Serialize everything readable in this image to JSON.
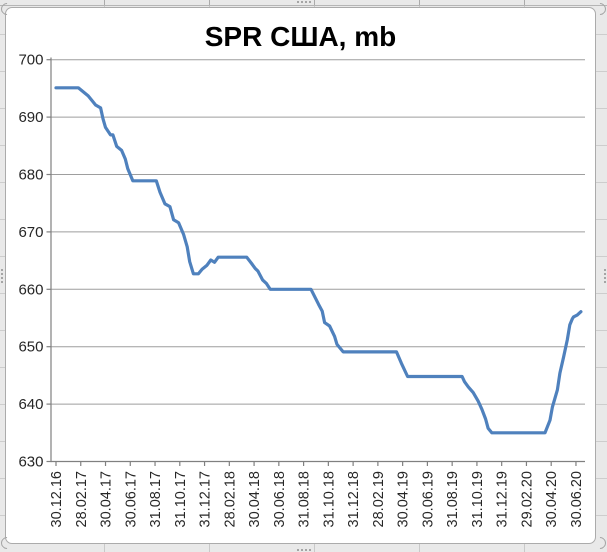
{
  "chart_data": {
    "type": "line",
    "title": "SPR США, mb",
    "legend": "none",
    "grid": "horizontal",
    "ylim": [
      630,
      700
    ],
    "y_ticks": [
      630,
      640,
      650,
      660,
      670,
      680,
      690,
      700
    ],
    "x_tick_labels": [
      "30.12.16",
      "28.02.17",
      "30.04.17",
      "30.06.17",
      "31.08.17",
      "31.10.17",
      "31.12.17",
      "28.02.18",
      "30.04.18",
      "30.06.18",
      "31.08.18",
      "31.10.18",
      "31.12.18",
      "28.02.19",
      "30.04.19",
      "30.06.19",
      "31.08.19",
      "31.10.19",
      "31.12.19",
      "29.02.20",
      "30.04.20",
      "30.06.20"
    ],
    "x_tick_month_step": 2,
    "x_unit": "months after 30.12.16",
    "colors": {
      "line": "#4F81BD",
      "grid": "#9E9E9E",
      "axis": "#808080",
      "labels": "#262626",
      "title": "#000000",
      "chart_background": "#FFFFFF",
      "sheet_background": "#E9E9E9"
    },
    "series": [
      {
        "name": "SPR США",
        "color": "#4F81BD",
        "line_width": 3.2,
        "points": [
          [
            0,
            695.1
          ],
          [
            1.8,
            695.1
          ],
          [
            2.6,
            693.7
          ],
          [
            3.2,
            692.1
          ],
          [
            3.6,
            691.6
          ],
          [
            3.8,
            689.7
          ],
          [
            4.0,
            688.2
          ],
          [
            4.4,
            686.9
          ],
          [
            4.6,
            686.9
          ],
          [
            4.9,
            684.9
          ],
          [
            5.3,
            684.2
          ],
          [
            5.6,
            682.7
          ],
          [
            5.8,
            681.0
          ],
          [
            6.2,
            678.9
          ],
          [
            8.1,
            678.9
          ],
          [
            8.4,
            676.9
          ],
          [
            8.8,
            674.9
          ],
          [
            9.2,
            674.4
          ],
          [
            9.5,
            672.1
          ],
          [
            9.9,
            671.6
          ],
          [
            10.3,
            669.6
          ],
          [
            10.6,
            667.4
          ],
          [
            10.8,
            664.8
          ],
          [
            11.1,
            662.7
          ],
          [
            11.5,
            662.7
          ],
          [
            11.8,
            663.5
          ],
          [
            12.2,
            664.2
          ],
          [
            12.5,
            665.1
          ],
          [
            12.8,
            664.7
          ],
          [
            13.1,
            665.6
          ],
          [
            15.4,
            665.6
          ],
          [
            15.8,
            664.5
          ],
          [
            16.1,
            663.6
          ],
          [
            16.3,
            663.2
          ],
          [
            16.7,
            661.6
          ],
          [
            17.0,
            661.0
          ],
          [
            17.3,
            660.0
          ],
          [
            20.6,
            660.0
          ],
          [
            21.2,
            657.4
          ],
          [
            21.5,
            656.2
          ],
          [
            21.7,
            654.2
          ],
          [
            22.1,
            653.6
          ],
          [
            22.5,
            651.8
          ],
          [
            22.7,
            650.4
          ],
          [
            23.2,
            649.1
          ],
          [
            27.5,
            649.1
          ],
          [
            27.9,
            647.1
          ],
          [
            28.4,
            644.8
          ],
          [
            32.8,
            644.8
          ],
          [
            33.0,
            643.9
          ],
          [
            33.3,
            643.0
          ],
          [
            33.7,
            642.0
          ],
          [
            34.1,
            640.5
          ],
          [
            34.4,
            639.1
          ],
          [
            34.7,
            637.4
          ],
          [
            34.9,
            635.8
          ],
          [
            35.2,
            635.0
          ],
          [
            39.5,
            635.0
          ],
          [
            39.9,
            637.2
          ],
          [
            40.1,
            639.5
          ],
          [
            40.5,
            642.5
          ],
          [
            40.7,
            645.4
          ],
          [
            41.0,
            648.2
          ],
          [
            41.3,
            651.2
          ],
          [
            41.5,
            653.8
          ],
          [
            41.7,
            654.8
          ],
          [
            41.8,
            655.2
          ],
          [
            42.1,
            655.5
          ],
          [
            42.4,
            656.1
          ]
        ]
      }
    ]
  }
}
